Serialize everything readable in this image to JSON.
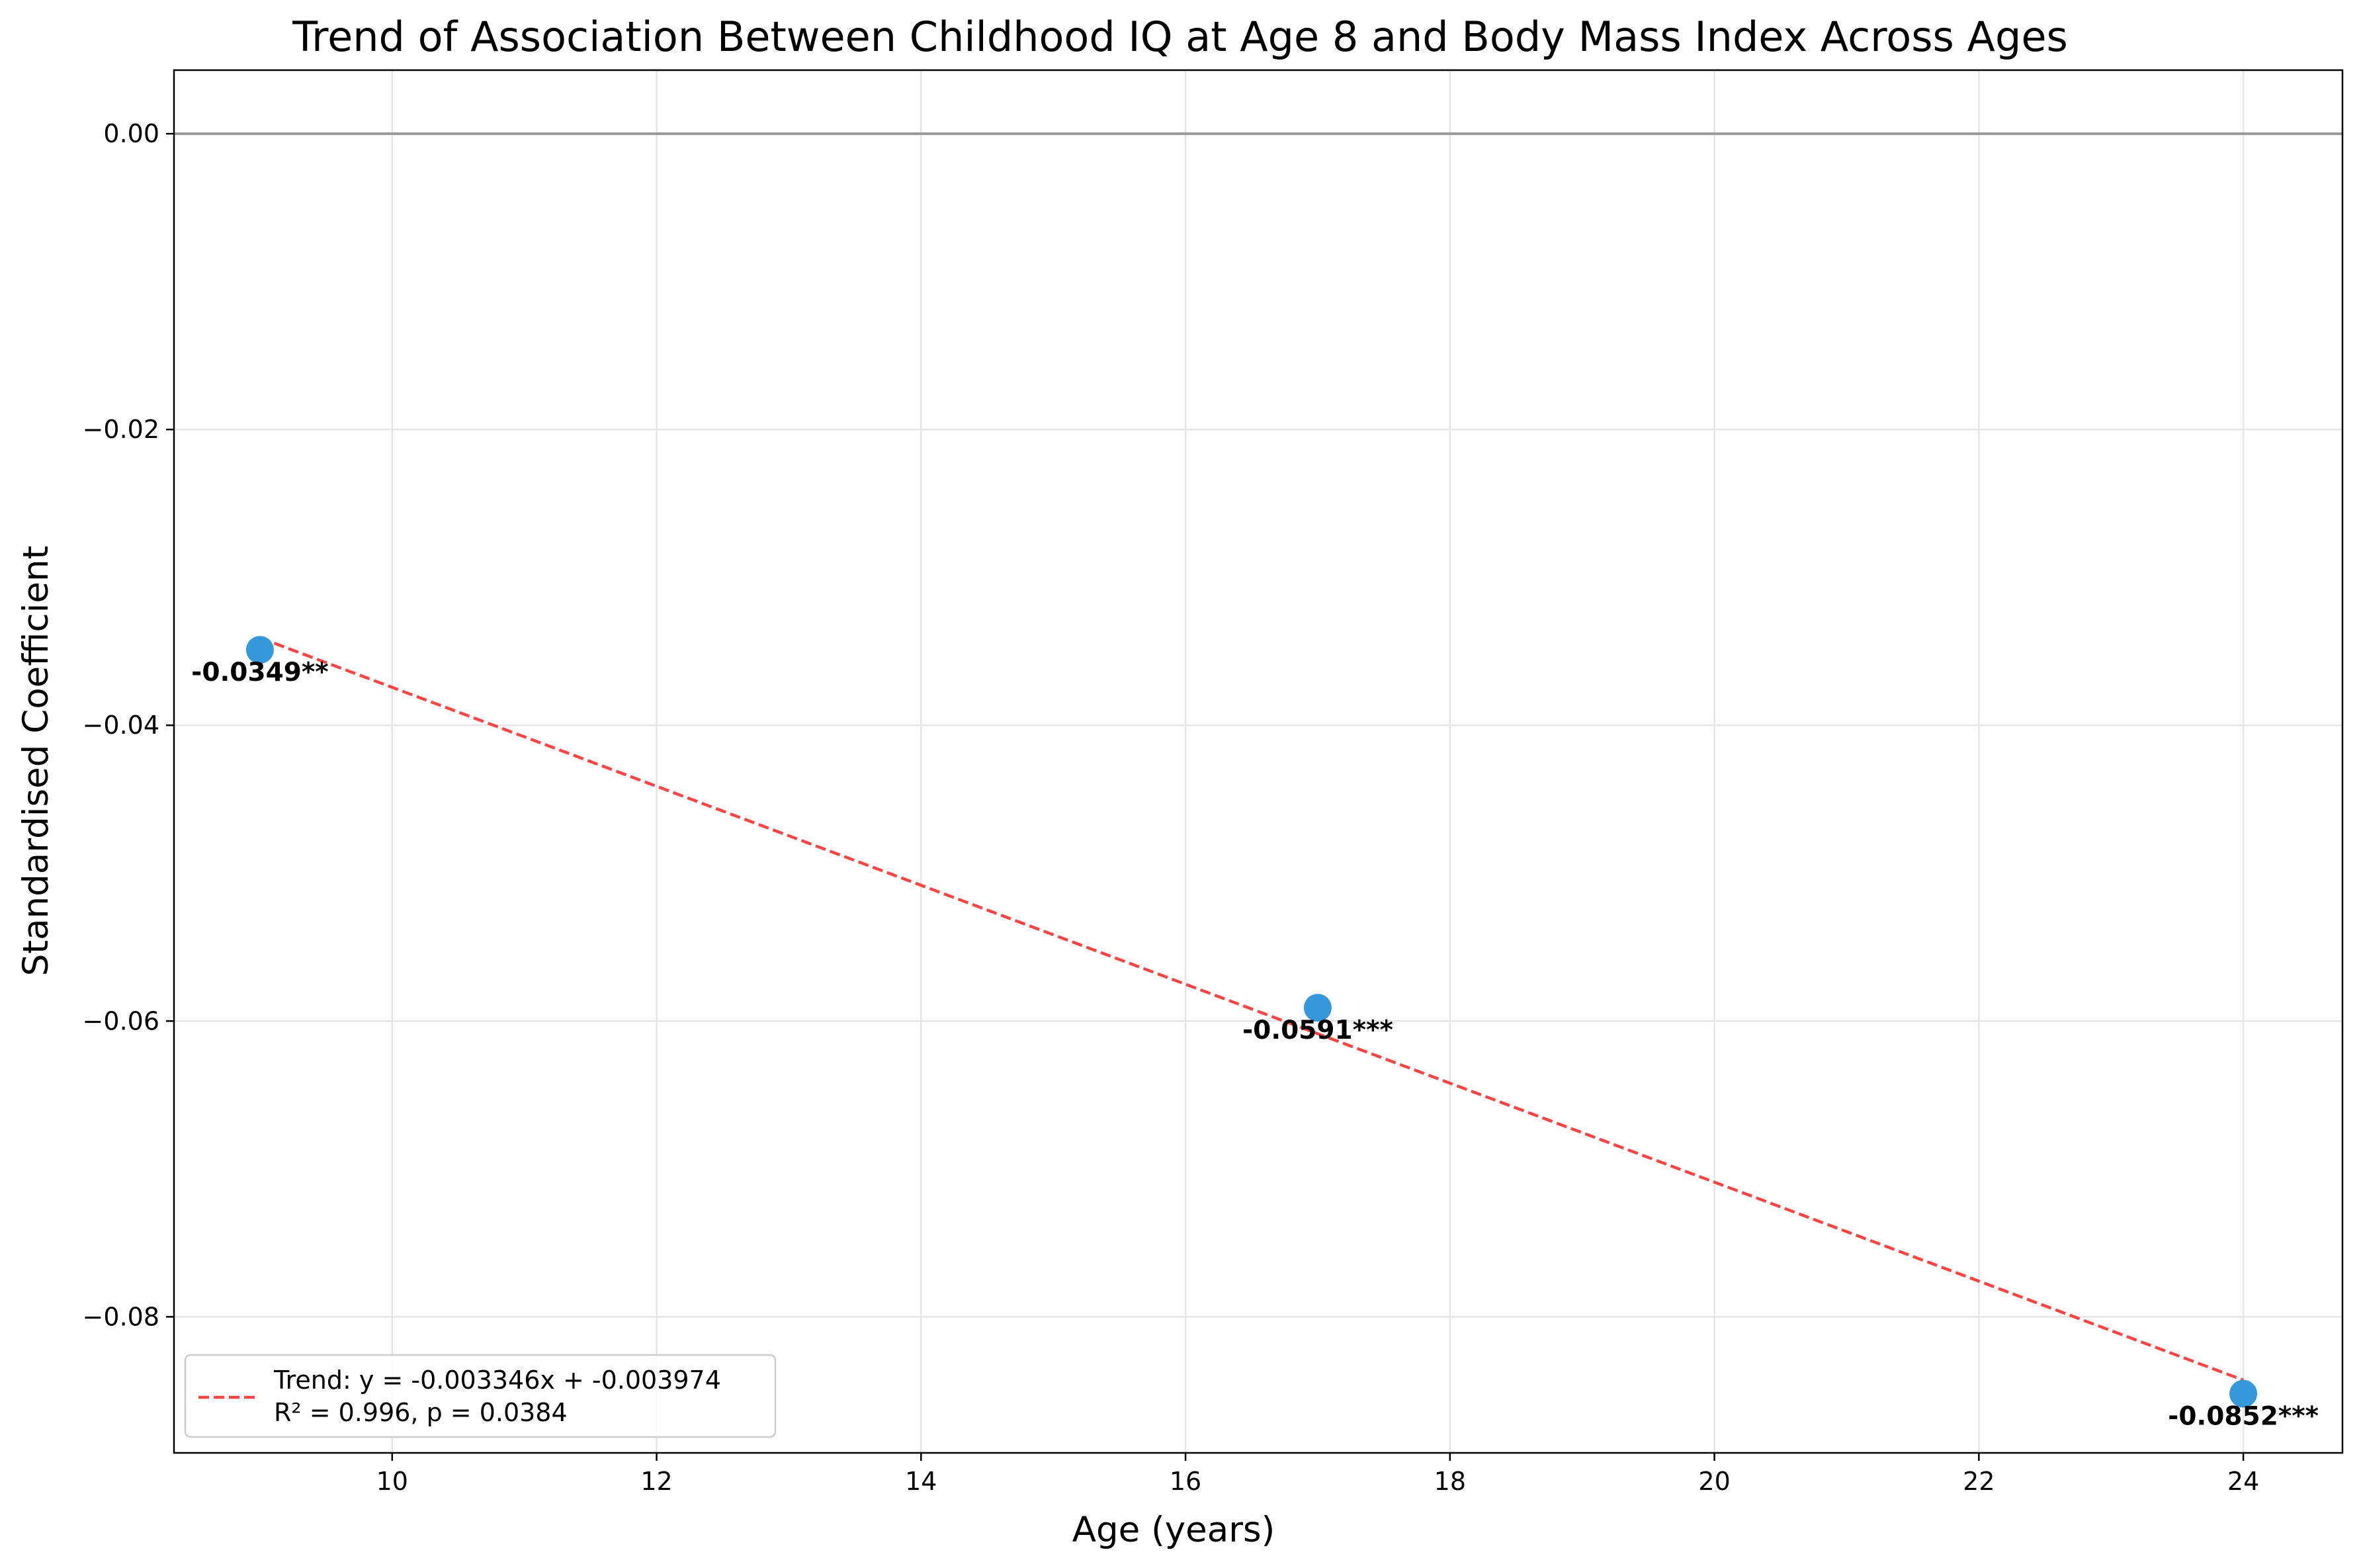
{
  "chart_data": {
    "type": "scatter",
    "title": "Trend of Association Between Childhood IQ at Age 8 and Body Mass Index Across Ages",
    "xlabel": "Age (years)",
    "ylabel": "Standardised Coefficient",
    "xlim": [
      8.35,
      24.75
    ],
    "ylim": [
      -0.0892,
      0.0043
    ],
    "xticks": [
      10,
      12,
      14,
      16,
      18,
      20,
      22,
      24
    ],
    "xtick_labels": [
      "10",
      "12",
      "14",
      "16",
      "18",
      "20",
      "22",
      "24"
    ],
    "yticks": [
      0.0,
      -0.02,
      -0.04,
      -0.06,
      -0.08
    ],
    "ytick_labels": [
      "0.00",
      "−0.02",
      "−0.04",
      "−0.06",
      "−0.08"
    ],
    "grid": true,
    "reference_line_y": 0,
    "points": [
      {
        "x": 9,
        "y": -0.0349,
        "label": "-0.0349**"
      },
      {
        "x": 17,
        "y": -0.0591,
        "label": "-0.0591***"
      },
      {
        "x": 24,
        "y": -0.0852,
        "label": "-0.0852***"
      }
    ],
    "trend": {
      "slope": -0.003346,
      "intercept": -0.003974,
      "x_range": [
        9,
        24
      ],
      "legend_line1": "Trend: y = -0.003346x + -0.003974",
      "legend_line2": "R² = 0.996, p = 0.0384"
    },
    "legend_placement": "lower-left",
    "colors": {
      "points": "#3498db",
      "trend": "#ff4444",
      "zero_line": "#999999",
      "grid": "#e5e5e5"
    }
  }
}
